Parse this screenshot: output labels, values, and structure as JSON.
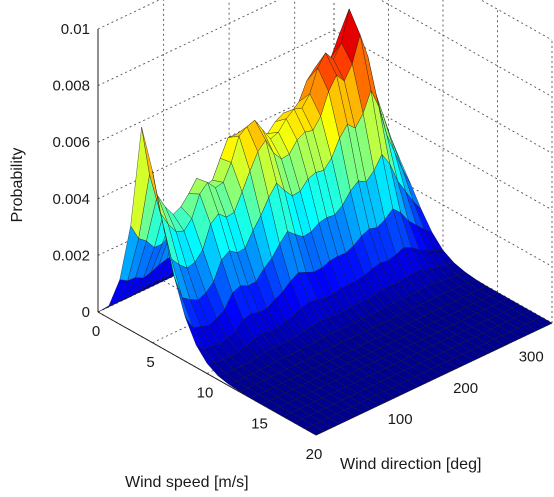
{
  "chart_data": {
    "type": "surface",
    "zlabel": "Probability",
    "xlabel": "Wind speed [m/s]",
    "ylabel": "Wind direction [deg]",
    "x_ticks": [
      "0",
      "5",
      "10",
      "15",
      "20"
    ],
    "y_ticks": [
      "100",
      "200",
      "300"
    ],
    "z_ticks": [
      "0",
      "0.002",
      "0.004",
      "0.006",
      "0.008",
      "0.01"
    ],
    "xlim": [
      0,
      20
    ],
    "ylim": [
      0,
      360
    ],
    "zlim": [
      0,
      0.01
    ],
    "grid": true,
    "colormap": [
      "#00008f",
      "#0000ff",
      "#0080ff",
      "#00ffff",
      "#80ff80",
      "#ffff00",
      "#ff8000",
      "#ff0000",
      "#800000"
    ],
    "peaks": [
      {
        "direction": 0,
        "speed": 4,
        "value": 0.0074
      },
      {
        "direction": 90,
        "speed": 5,
        "value": 0.0047
      },
      {
        "direction": 150,
        "speed": 6,
        "value": 0.0062
      },
      {
        "direction": 200,
        "speed": 6,
        "value": 0.0058
      },
      {
        "direction": 250,
        "speed": 6,
        "value": 0.0075
      },
      {
        "direction": 300,
        "speed": 6,
        "value": 0.0085
      }
    ],
    "direction_grid": [
      0,
      12,
      24,
      36,
      48,
      60,
      72,
      84,
      96,
      108,
      120,
      132,
      144,
      156,
      168,
      180,
      192,
      204,
      216,
      228,
      240,
      252,
      264,
      276,
      288,
      300,
      312,
      324,
      336,
      348,
      360
    ],
    "speed_grid": [
      0,
      1,
      2,
      3,
      4,
      5,
      6,
      7,
      8,
      9,
      10,
      11,
      12,
      13,
      14,
      15,
      16,
      17,
      18,
      19,
      20
    ],
    "z": [
      [
        0,
        0.00044,
        0.00158,
        0.0037,
        0.0074,
        0.00607,
        0.00431,
        0.00275,
        0.00156,
        0.00079,
        0.00036,
        0.00014,
        5e-05,
        2e-05,
        0,
        0,
        0,
        0,
        0,
        0,
        0
      ],
      [
        0,
        0.00042,
        0.00141,
        0.00312,
        0.0056,
        0.00445,
        0.00305,
        0.00189,
        0.00105,
        0.00052,
        0.00024,
        9e-05,
        3e-05,
        1e-05,
        0,
        0,
        0,
        0,
        0,
        0,
        0
      ],
      [
        0,
        0.00045,
        0.00139,
        0.0029,
        0.00473,
        0.00392,
        0.00271,
        0.0017,
        0.00096,
        0.00049,
        0.00023,
        9e-05,
        3e-05,
        1e-05,
        0,
        0,
        0,
        0,
        0,
        0,
        0
      ],
      [
        0,
        0.0004,
        0.00124,
        0.00254,
        0.00419,
        0.00353,
        0.00246,
        0.00155,
        0.00087,
        0.00044,
        0.0002,
        8e-05,
        3e-05,
        1e-05,
        0,
        0,
        0,
        0,
        0,
        0,
        0
      ],
      [
        0,
        0.00047,
        0.00132,
        0.00253,
        0.00379,
        0.00342,
        0.00253,
        0.00167,
        0.00098,
        0.00052,
        0.00025,
        0.0001,
        4e-05,
        1e-05,
        0,
        0,
        0,
        0,
        0,
        0,
        0
      ],
      [
        0,
        0.00052,
        0.00145,
        0.00274,
        0.00393,
        0.00373,
        0.00284,
        0.00193,
        0.00116,
        0.00063,
        0.0003,
        0.00013,
        5e-05,
        2e-05,
        0,
        0,
        0,
        0,
        0,
        0,
        0
      ],
      [
        0,
        0.00051,
        0.00152,
        0.00297,
        0.00426,
        0.00446,
        0.00362,
        0.00257,
        0.00162,
        0.0009,
        0.00045,
        0.00019,
        7e-05,
        2e-05,
        0,
        0,
        0,
        0,
        0,
        0,
        0
      ],
      [
        0,
        0.00049,
        0.00156,
        0.00316,
        0.00467,
        0.00474,
        0.00385,
        0.00276,
        0.00174,
        0.00097,
        0.00048,
        0.00021,
        8e-05,
        3e-05,
        0,
        0,
        0,
        0,
        0,
        0,
        0
      ],
      [
        0,
        0.00054,
        0.00154,
        0.00298,
        0.00428,
        0.00442,
        0.0036,
        0.00256,
        0.00161,
        0.00089,
        0.00044,
        0.00019,
        7e-05,
        2e-05,
        0,
        0,
        0,
        0,
        0,
        0,
        0
      ],
      [
        0,
        0.00052,
        0.00153,
        0.00303,
        0.00434,
        0.00448,
        0.00364,
        0.00259,
        0.00163,
        0.0009,
        0.00045,
        0.00019,
        7e-05,
        2e-05,
        0,
        0,
        0,
        0,
        0,
        0,
        0
      ],
      [
        0,
        0.00054,
        0.00165,
        0.00329,
        0.00498,
        0.00505,
        0.00423,
        0.00308,
        0.00195,
        0.00108,
        0.00053,
        0.00023,
        9e-05,
        3e-05,
        0,
        0,
        0,
        0,
        0,
        0,
        0
      ],
      [
        0,
        0.00058,
        0.00182,
        0.00366,
        0.00558,
        0.00585,
        0.00483,
        0.00347,
        0.00218,
        0.00122,
        0.00061,
        0.00027,
        0.0001,
        3e-05,
        0,
        0,
        0,
        0,
        0,
        0,
        0
      ],
      [
        0,
        0.00059,
        0.0018,
        0.00361,
        0.00556,
        0.00605,
        0.00538,
        0.00398,
        0.00256,
        0.00146,
        0.00073,
        0.00033,
        0.00012,
        4e-05,
        0,
        0,
        0,
        0,
        0,
        0,
        0
      ],
      [
        0,
        0.00054,
        0.00173,
        0.00355,
        0.00561,
        0.00615,
        0.00566,
        0.00436,
        0.00287,
        0.00163,
        0.00082,
        0.00037,
        0.00014,
        5e-05,
        0,
        0,
        0,
        0,
        0,
        0,
        0
      ],
      [
        0,
        0.00053,
        0.00169,
        0.00342,
        0.00533,
        0.00568,
        0.00508,
        0.00397,
        0.00263,
        0.00151,
        0.00076,
        0.00034,
        0.00013,
        4e-05,
        0,
        0,
        0,
        0,
        0,
        0,
        0
      ],
      [
        0,
        0.00056,
        0.00174,
        0.00342,
        0.00516,
        0.00522,
        0.00473,
        0.00365,
        0.00242,
        0.00139,
        0.00069,
        0.00031,
        0.00012,
        4e-05,
        0,
        0,
        0,
        0,
        0,
        0,
        0
      ],
      [
        0,
        0.0006,
        0.00182,
        0.00351,
        0.00506,
        0.00533,
        0.00477,
        0.00368,
        0.00246,
        0.00141,
        0.00071,
        0.00031,
        0.00012,
        4e-05,
        0,
        0,
        0,
        0,
        0,
        0,
        0
      ],
      [
        0,
        0.00062,
        0.00189,
        0.00367,
        0.00535,
        0.00567,
        0.00514,
        0.00398,
        0.00264,
        0.00152,
        0.00076,
        0.00034,
        0.00013,
        4e-05,
        0,
        0,
        0,
        0,
        0,
        0,
        0
      ],
      [
        0,
        0.00063,
        0.00194,
        0.00377,
        0.00552,
        0.00588,
        0.00529,
        0.00408,
        0.0027,
        0.00155,
        0.00078,
        0.00035,
        0.00013,
        4e-05,
        0,
        0,
        0,
        0,
        0,
        0,
        0
      ],
      [
        0,
        0.0006,
        0.00185,
        0.00364,
        0.00541,
        0.00578,
        0.00521,
        0.00402,
        0.00266,
        0.00153,
        0.00077,
        0.00034,
        0.00013,
        4e-05,
        0,
        0,
        0,
        0,
        0,
        0,
        0
      ],
      [
        0,
        0.0006,
        0.00189,
        0.00375,
        0.00566,
        0.00616,
        0.00558,
        0.00432,
        0.00287,
        0.00165,
        0.00083,
        0.00037,
        0.00014,
        5e-05,
        0,
        0,
        0,
        0,
        0,
        0,
        0
      ],
      [
        0,
        0.00065,
        0.00204,
        0.00406,
        0.00627,
        0.00694,
        0.00632,
        0.00489,
        0.00324,
        0.00186,
        0.00093,
        0.00041,
        0.00016,
        5e-05,
        0,
        0,
        0,
        0,
        0,
        0,
        0
      ],
      [
        0,
        0.00067,
        0.00212,
        0.00425,
        0.00658,
        0.00734,
        0.00677,
        0.00525,
        0.00347,
        0.00199,
        0.001,
        0.00044,
        0.00017,
        6e-05,
        0,
        0,
        0,
        0,
        0,
        0,
        0
      ],
      [
        0,
        0.00064,
        0.00203,
        0.00408,
        0.00631,
        0.00698,
        0.00643,
        0.00498,
        0.0033,
        0.0019,
        0.00095,
        0.00042,
        0.00016,
        5e-05,
        0,
        0,
        0,
        0,
        0,
        0,
        0
      ],
      [
        0,
        0.00066,
        0.00209,
        0.00424,
        0.00664,
        0.00743,
        0.0069,
        0.00537,
        0.00357,
        0.00205,
        0.00103,
        0.00045,
        0.00017,
        6e-05,
        0,
        0,
        0,
        0,
        0,
        0,
        0
      ],
      [
        0,
        0.0007,
        0.00224,
        0.00458,
        0.00728,
        0.0085,
        0.0078,
        0.00605,
        0.00401,
        0.0023,
        0.00115,
        0.00051,
        0.0002,
        6e-05,
        0,
        0,
        0,
        0,
        0,
        0,
        0
      ],
      [
        0,
        0.00067,
        0.00213,
        0.0043,
        0.00674,
        0.00752,
        0.0069,
        0.00535,
        0.00355,
        0.00204,
        0.00102,
        0.00045,
        0.00017,
        6e-05,
        0,
        0,
        0,
        0,
        0,
        0,
        0
      ],
      [
        0,
        0.00061,
        0.00191,
        0.00377,
        0.00568,
        0.00601,
        0.00546,
        0.00423,
        0.00281,
        0.00161,
        0.00081,
        0.00036,
        0.00014,
        5e-05,
        0,
        0,
        0,
        0,
        0,
        0,
        0
      ],
      [
        0,
        0.00055,
        0.00171,
        0.00335,
        0.00493,
        0.00501,
        0.0045,
        0.00348,
        0.00231,
        0.00133,
        0.00067,
        0.0003,
        0.00011,
        4e-05,
        0,
        0,
        0,
        0,
        0,
        0,
        0
      ],
      [
        0,
        0.00048,
        0.00149,
        0.00286,
        0.00413,
        0.00406,
        0.00358,
        0.00275,
        0.00182,
        0.00105,
        0.00052,
        0.00023,
        9e-05,
        3e-05,
        0,
        0,
        0,
        0,
        0,
        0,
        0
      ],
      [
        0,
        0.00042,
        0.00128,
        0.00245,
        0.0035,
        0.00327,
        0.00278,
        0.00212,
        0.00141,
        0.00081,
        0.0004,
        0.00018,
        7e-05,
        2e-05,
        0,
        0,
        0,
        0,
        0,
        0,
        0
      ]
    ]
  }
}
